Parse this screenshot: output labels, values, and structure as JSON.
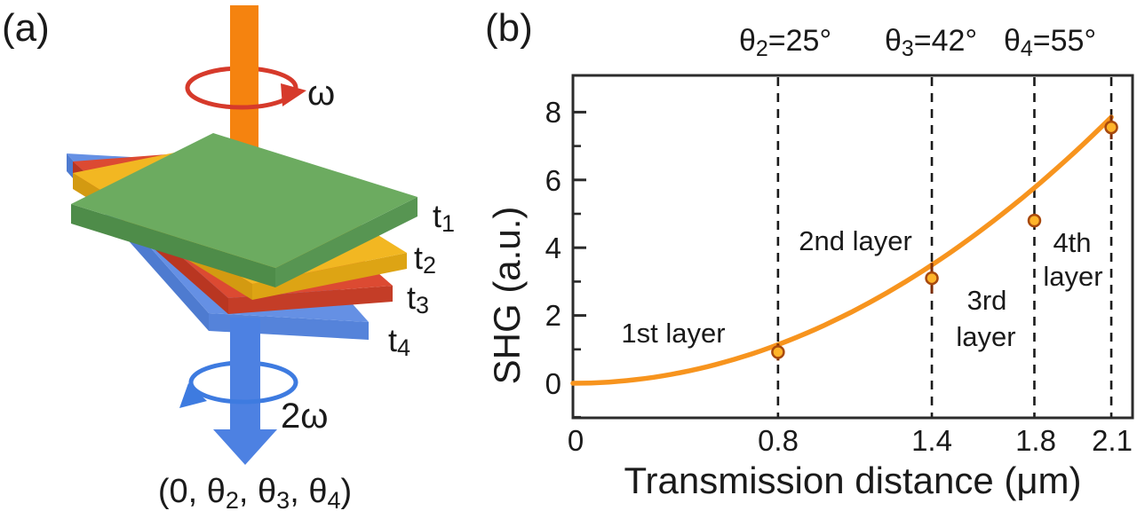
{
  "panel_a": {
    "label": "(a)",
    "pump": {
      "omega_label": "ω",
      "arrow_color": "#F5830F",
      "rotation_color": "#D63A2B"
    },
    "shg": {
      "two_omega_label": "2ω",
      "arrow_color": "#4D81E2",
      "rotation_color": "#3E7BE0"
    },
    "layers": [
      {
        "label_base": "t",
        "label_sub": "1",
        "color_top": "#6CAB60",
        "color_left": "#4E8C49",
        "color_right": "#579552"
      },
      {
        "label_base": "t",
        "label_sub": "2",
        "color_top": "#F2B722",
        "color_left": "#D39A11",
        "color_right": "#DDA414"
      },
      {
        "label_base": "t",
        "label_sub": "3",
        "color_top": "#DC4A32",
        "color_left": "#B93621",
        "color_right": "#C43D27"
      },
      {
        "label_base": "t",
        "label_sub": "4",
        "color_top": "#6590E4",
        "color_left": "#4E7BD0",
        "color_right": "#5583DA"
      }
    ],
    "formula_parts": {
      "p0": "(0, θ",
      "s1": "2",
      "p1": ", θ",
      "s2": "3",
      "p2": ", θ",
      "s3": "4",
      "p3": ")"
    }
  },
  "panel_b": {
    "label": "(b)",
    "theta_annotations": [
      {
        "base": "θ",
        "sub": "2",
        "rest": "=25°"
      },
      {
        "base": "θ",
        "sub": "3",
        "rest": "=42°"
      },
      {
        "base": "θ",
        "sub": "4",
        "rest": "=55°"
      }
    ]
  },
  "chart_data": {
    "type": "scatter",
    "title": "",
    "xlabel": "Transmission distance (μm)",
    "ylabel": "SHG (a.u.)",
    "xlim": [
      0,
      2.18
    ],
    "ylim": [
      -1.05,
      9.1
    ],
    "x_ticks": {
      "values": [
        0,
        0.8,
        1.4,
        1.8,
        2.1
      ],
      "labels": [
        "0",
        "0.8",
        "1.4",
        "1.8",
        "2.1"
      ]
    },
    "y_ticks": {
      "major": [
        0,
        2,
        4,
        6,
        8
      ],
      "labels": [
        "0",
        "2",
        "4",
        "6",
        "8"
      ],
      "minor": [
        -1,
        1,
        3,
        5,
        7
      ]
    },
    "dashed_guidelines_x": [
      0.8,
      1.4,
      1.8,
      2.1
    ],
    "points": [
      {
        "x": 0.8,
        "y": 0.92,
        "err": 0.25
      },
      {
        "x": 1.4,
        "y": 3.1,
        "err": 0.45
      },
      {
        "x": 1.8,
        "y": 4.8,
        "err": 0.12
      },
      {
        "x": 2.1,
        "y": 7.55,
        "err": 0.35
      }
    ],
    "fit_curve": {
      "form": "y = a·x²",
      "a": 1.78,
      "x_range": [
        0,
        2.1
      ]
    },
    "region_labels": [
      {
        "line1": "1st layer",
        "line2": ""
      },
      {
        "line1": "2nd layer",
        "line2": ""
      },
      {
        "line1": "3rd",
        "line2": "layer"
      },
      {
        "line1": "4th",
        "line2": "layer"
      }
    ],
    "colors": {
      "curve": "#F7941E",
      "marker_fill": "#FFB42A",
      "marker_edge": "#A8490D",
      "error_bar": "#7E2D06",
      "guideline": "#1a1a1a",
      "axis": "#2b2b2b",
      "text": "#1a1a1a"
    },
    "grid": false,
    "legend": null
  }
}
